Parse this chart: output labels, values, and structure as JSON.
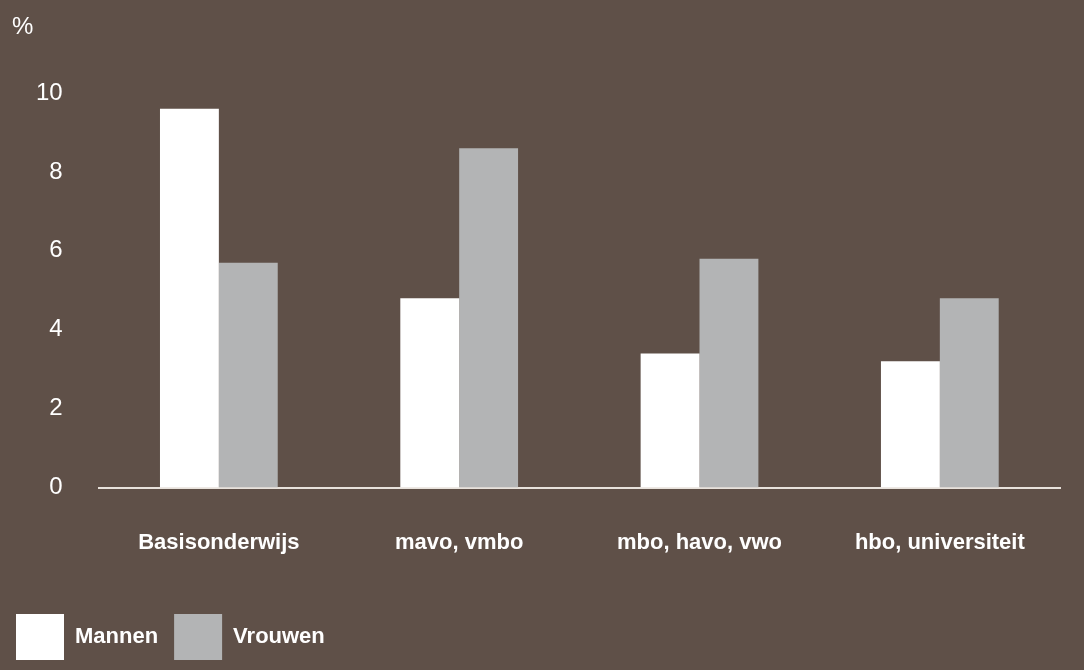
{
  "chart_data": {
    "type": "bar",
    "ylabel": "%",
    "categories": [
      "Basisonderwijs",
      "mavo, vmbo",
      "mbo, havo, vwo",
      "hbo, universiteit"
    ],
    "series": [
      {
        "name": "Mannen",
        "color": "#ffffff",
        "values": [
          9.6,
          4.8,
          3.4,
          3.2
        ]
      },
      {
        "name": "Vrouwen",
        "color": "#b3b4b5",
        "values": [
          5.7,
          8.6,
          5.8,
          4.8
        ]
      }
    ],
    "ylim": [
      0,
      10
    ],
    "yticks": [
      0,
      2,
      4,
      6,
      8,
      10
    ],
    "grid": false,
    "legend": "bottom left"
  }
}
